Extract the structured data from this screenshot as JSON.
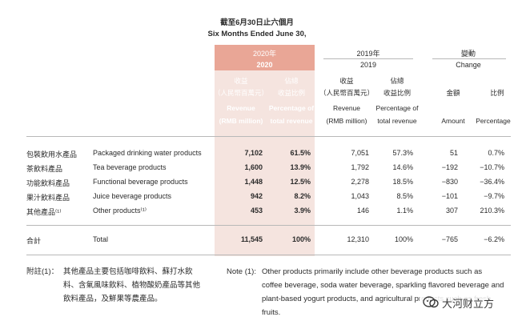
{
  "title": {
    "zh": "截至6月30日止六個月",
    "en": "Six Months Ended June 30,"
  },
  "headers": {
    "y2020": {
      "zh": "2020年",
      "en": "2020"
    },
    "y2019": {
      "zh": "2019年",
      "en": "2019"
    },
    "change": {
      "zh": "變動",
      "en": "Change"
    },
    "revenue": {
      "zh": "收益",
      "en": "Revenue"
    },
    "rmb": {
      "zh": "（人民幣百萬元）",
      "en": "(RMB million)"
    },
    "pct": {
      "zh1": "佔總",
      "zh2": "收益比例",
      "en1": "Percentage of",
      "en2": "total revenue"
    },
    "amount": {
      "zh": "金額",
      "en": "Amount"
    },
    "ratio": {
      "zh": "比例",
      "en": "Percentage"
    }
  },
  "rows": [
    {
      "zh": "包裝飲用水產品",
      "en": "Packaged drinking water products",
      "r2020": "7,102",
      "p2020": "61.5%",
      "r2019": "7,051",
      "p2019": "57.3%",
      "amt": "51",
      "pct": "0.7%"
    },
    {
      "zh": "茶飲料產品",
      "en": "Tea beverage products",
      "r2020": "1,600",
      "p2020": "13.9%",
      "r2019": "1,792",
      "p2019": "14.6%",
      "amt": "−192",
      "pct": "−10.7%"
    },
    {
      "zh": "功能飲料產品",
      "en": "Functional beverage products",
      "r2020": "1,448",
      "p2020": "12.5%",
      "r2019": "2,278",
      "p2019": "18.5%",
      "amt": "−830",
      "pct": "−36.4%"
    },
    {
      "zh": "果汁飲料產品",
      "en": "Juice beverage products",
      "r2020": "942",
      "p2020": "8.2%",
      "r2019": "1,043",
      "p2019": "8.5%",
      "amt": "−101",
      "pct": "−9.7%"
    },
    {
      "zh": "其他產品⁽¹⁾",
      "en": "Other products⁽¹⁾",
      "r2020": "453",
      "p2020": "3.9%",
      "r2019": "146",
      "p2019": "1.1%",
      "amt": "307",
      "pct": "210.3%"
    }
  ],
  "total": {
    "zh": "合計",
    "en": "Total",
    "r2020": "11,545",
    "p2020": "100%",
    "r2019": "12,310",
    "p2019": "100%",
    "amt": "−765",
    "pct": "−6.2%"
  },
  "notes": {
    "zh_label": "附註(1)：",
    "zh_lines": [
      "其他產品主要包括咖啡飲料、蘇打水飲",
      "料、含氣風味飲料、植物酸奶產品等其他",
      "飲料產品，及鮮果等農產品。"
    ],
    "en_label": "Note (1):",
    "en_lines": [
      "Other products primarily include other beverage products such as",
      "coffee beverage, soda water beverage, sparkling flavored beverage and",
      "plant-based yogurt products, and agricultural products such as fresh",
      "fruits."
    ]
  },
  "watermark": "大河财立方"
}
